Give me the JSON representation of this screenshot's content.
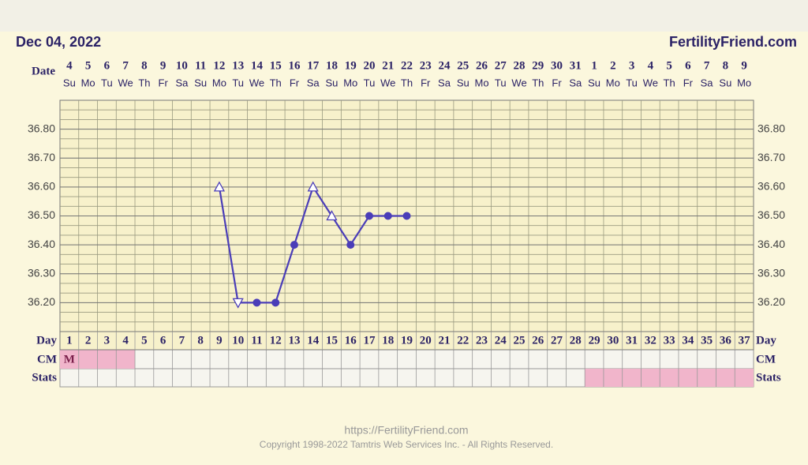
{
  "header": {
    "date": "Dec 04, 2022",
    "site": "FertilityFriend.com"
  },
  "chart_data": {
    "type": "line",
    "row_labels": {
      "date": "Date",
      "day": "Day",
      "cm": "CM",
      "stats": "Stats"
    },
    "categories": [
      "1",
      "2",
      "3",
      "4",
      "5",
      "6",
      "7",
      "8",
      "9",
      "10",
      "11",
      "12",
      "13",
      "14",
      "15",
      "16",
      "17",
      "18",
      "19",
      "20",
      "21",
      "22",
      "23",
      "24",
      "25",
      "26",
      "27",
      "28",
      "29",
      "30",
      "31",
      "32",
      "33",
      "34",
      "35",
      "36",
      "37"
    ],
    "dates": [
      4,
      5,
      6,
      7,
      8,
      9,
      10,
      11,
      12,
      13,
      14,
      15,
      16,
      17,
      18,
      19,
      20,
      21,
      22,
      23,
      24,
      25,
      26,
      27,
      28,
      29,
      30,
      31,
      1,
      2,
      3,
      4,
      5,
      6,
      7,
      8,
      9
    ],
    "weekdays": [
      "Su",
      "Mo",
      "Tu",
      "We",
      "Th",
      "Fr",
      "Sa",
      "Su",
      "Mo",
      "Tu",
      "We",
      "Th",
      "Fr",
      "Sa",
      "Su",
      "Mo",
      "Tu",
      "We",
      "Th",
      "Fr",
      "Sa",
      "Su",
      "Mo",
      "Tu",
      "We",
      "Th",
      "Fr",
      "Sa",
      "Su",
      "Mo",
      "Tu",
      "We",
      "Th",
      "Fr",
      "Sa",
      "Su",
      "Mo"
    ],
    "values": [
      null,
      null,
      null,
      null,
      null,
      null,
      null,
      null,
      36.6,
      36.2,
      36.2,
      36.2,
      36.4,
      36.6,
      36.5,
      36.4,
      36.5,
      36.5,
      36.5,
      null,
      null,
      null,
      null,
      null,
      null,
      null,
      null,
      null,
      null,
      null,
      null,
      null,
      null,
      null,
      null,
      null,
      null
    ],
    "markers": [
      null,
      null,
      null,
      null,
      null,
      null,
      null,
      null,
      "triangle-up",
      "triangle-down",
      "circle",
      "circle",
      "circle",
      "triangle-up",
      "triangle-up",
      "circle",
      "circle",
      "circle",
      "circle",
      null,
      null,
      null,
      null,
      null,
      null,
      null,
      null,
      null,
      null,
      null,
      null,
      null,
      null,
      null,
      null,
      null,
      null
    ],
    "color": "#4a3db8",
    "ylim": [
      36.1,
      36.9
    ],
    "yticks": [
      {
        "value": 36.2,
        "label": "36.20"
      },
      {
        "value": 36.3,
        "label": "36.30"
      },
      {
        "value": 36.4,
        "label": "36.40"
      },
      {
        "value": 36.5,
        "label": "36.50"
      },
      {
        "value": 36.6,
        "label": "36.60"
      },
      {
        "value": 36.7,
        "label": "36.70"
      },
      {
        "value": 36.8,
        "label": "36.80"
      }
    ],
    "cm": [
      "M",
      null,
      null,
      null,
      null,
      null,
      null,
      null,
      null,
      null,
      null,
      null,
      null,
      null,
      null,
      null,
      null,
      null,
      null,
      null,
      null,
      null,
      null,
      null,
      null,
      null,
      null,
      null,
      null,
      null,
      null,
      null,
      null,
      null,
      null,
      null,
      null
    ],
    "cm_shaded_days": [
      1,
      2,
      3,
      4
    ],
    "stats_shaded_days": [
      29,
      30,
      31,
      32,
      33,
      34,
      35,
      36,
      37
    ],
    "shade_color": "#f1b5cb",
    "grid": true
  },
  "footer": {
    "url": "https://FertilityFriend.com",
    "copyright": "Copyright 1998-2022 Tamtris Web Services Inc. - All Rights Reserved."
  }
}
